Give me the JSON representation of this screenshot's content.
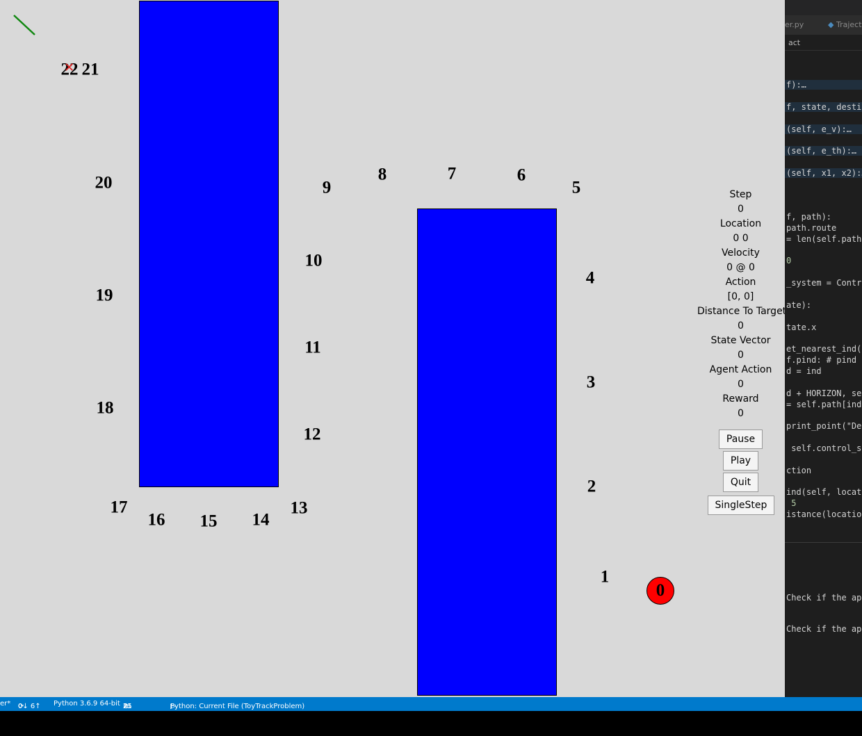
{
  "waypoints": [
    {
      "label": "0"
    },
    {
      "label": "1"
    },
    {
      "label": "2"
    },
    {
      "label": "3"
    },
    {
      "label": "4"
    },
    {
      "label": "5"
    },
    {
      "label": "6"
    },
    {
      "label": "7"
    },
    {
      "label": "8"
    },
    {
      "label": "9"
    },
    {
      "label": "10"
    },
    {
      "label": "11"
    },
    {
      "label": "12"
    },
    {
      "label": "13"
    },
    {
      "label": "14"
    },
    {
      "label": "15"
    },
    {
      "label": "16"
    },
    {
      "label": "17"
    },
    {
      "label": "18"
    },
    {
      "label": "19"
    },
    {
      "label": "20"
    },
    {
      "label": "21"
    },
    {
      "label": "22"
    }
  ],
  "agent": {
    "label": "0",
    "color": "#ff0000"
  },
  "wall_color": "#0000ff",
  "panel": {
    "step_label": "Step",
    "step_value": "0",
    "location_label": "Location",
    "location_value": "0 0",
    "velocity_label": "Velocity",
    "velocity_value": "0 @ 0",
    "action_label": "Action",
    "action_value": "[0, 0]",
    "distance_label": "Distance To Target",
    "distance_value": "0",
    "state_label": "State Vector",
    "state_value": "0",
    "agent_action_label": "Agent Action",
    "agent_action_value": "0",
    "reward_label": "Reward",
    "reward_value": "0"
  },
  "buttons": {
    "pause": "Pause",
    "play": "Play",
    "quit": "Quit",
    "singlestep": "SingleStep"
  },
  "editor": {
    "tab1": "er.py",
    "tab2": "Traject",
    "breadcrumb": "act",
    "lines": [
      "f):…",
      "f, state, destin",
      "(self, e_v):…",
      "(self, e_th):…",
      "(self, x1, x2):…",
      "f, path):",
      "path.route",
      "= len(self.path)",
      "0",
      "_system = Contro",
      "ate):",
      "tate.x",
      "et_nearest_ind(l",
      "f.pind: # pind i",
      "d = ind",
      "d + HORIZON, sel",
      "= self.path[ind]",
      "print_point(\"Des",
      " self.control_sy",
      "ction",
      "ind(self, locati",
      " 5",
      "istance(location",
      "Check if the app",
      "Check if the app"
    ]
  },
  "status": {
    "branch": "er*",
    "sync": "0↓ 6↑",
    "python": "Python 3.6.9 64-bit",
    "errors": "21",
    "warnings": "25",
    "run": "Python: Current File (ToyTrackProblem)"
  }
}
